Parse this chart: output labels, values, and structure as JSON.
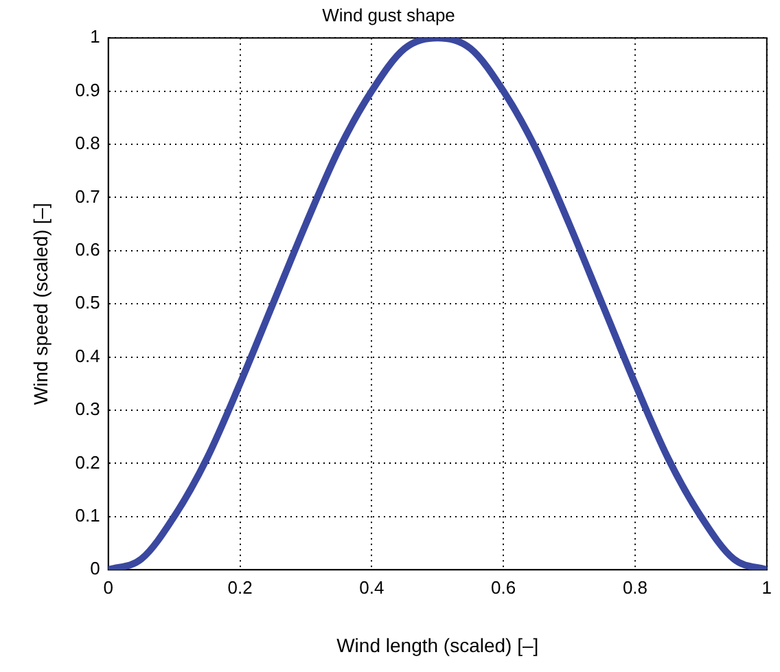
{
  "chart_data": {
    "type": "line",
    "title": "Wind gust shape",
    "xlabel": "Wind length (scaled) [–]",
    "ylabel": "Wind speed (scaled) [–]",
    "x": [
      0,
      0.05,
      0.1,
      0.15,
      0.2,
      0.25,
      0.3,
      0.35,
      0.4,
      0.45,
      0.5,
      0.55,
      0.6,
      0.65,
      0.7,
      0.75,
      0.8,
      0.85,
      0.9,
      0.95,
      1
    ],
    "series": [
      {
        "color": "#3a48a0",
        "values": [
          0,
          0.02,
          0.1,
          0.21,
          0.35,
          0.5,
          0.65,
          0.79,
          0.9,
          0.98,
          1,
          0.98,
          0.9,
          0.79,
          0.65,
          0.5,
          0.35,
          0.21,
          0.1,
          0.02,
          0
        ]
      }
    ],
    "xlim": [
      0,
      1
    ],
    "xticks": [
      0,
      0.2,
      0.4,
      0.6,
      0.8,
      1
    ],
    "ylim": [
      0,
      1
    ],
    "yticks": [
      0,
      0.1,
      0.2,
      0.3,
      0.4,
      0.5,
      0.6,
      0.7,
      0.8,
      0.9,
      1
    ],
    "grid": true,
    "line_style": "solid",
    "marker": "none"
  }
}
